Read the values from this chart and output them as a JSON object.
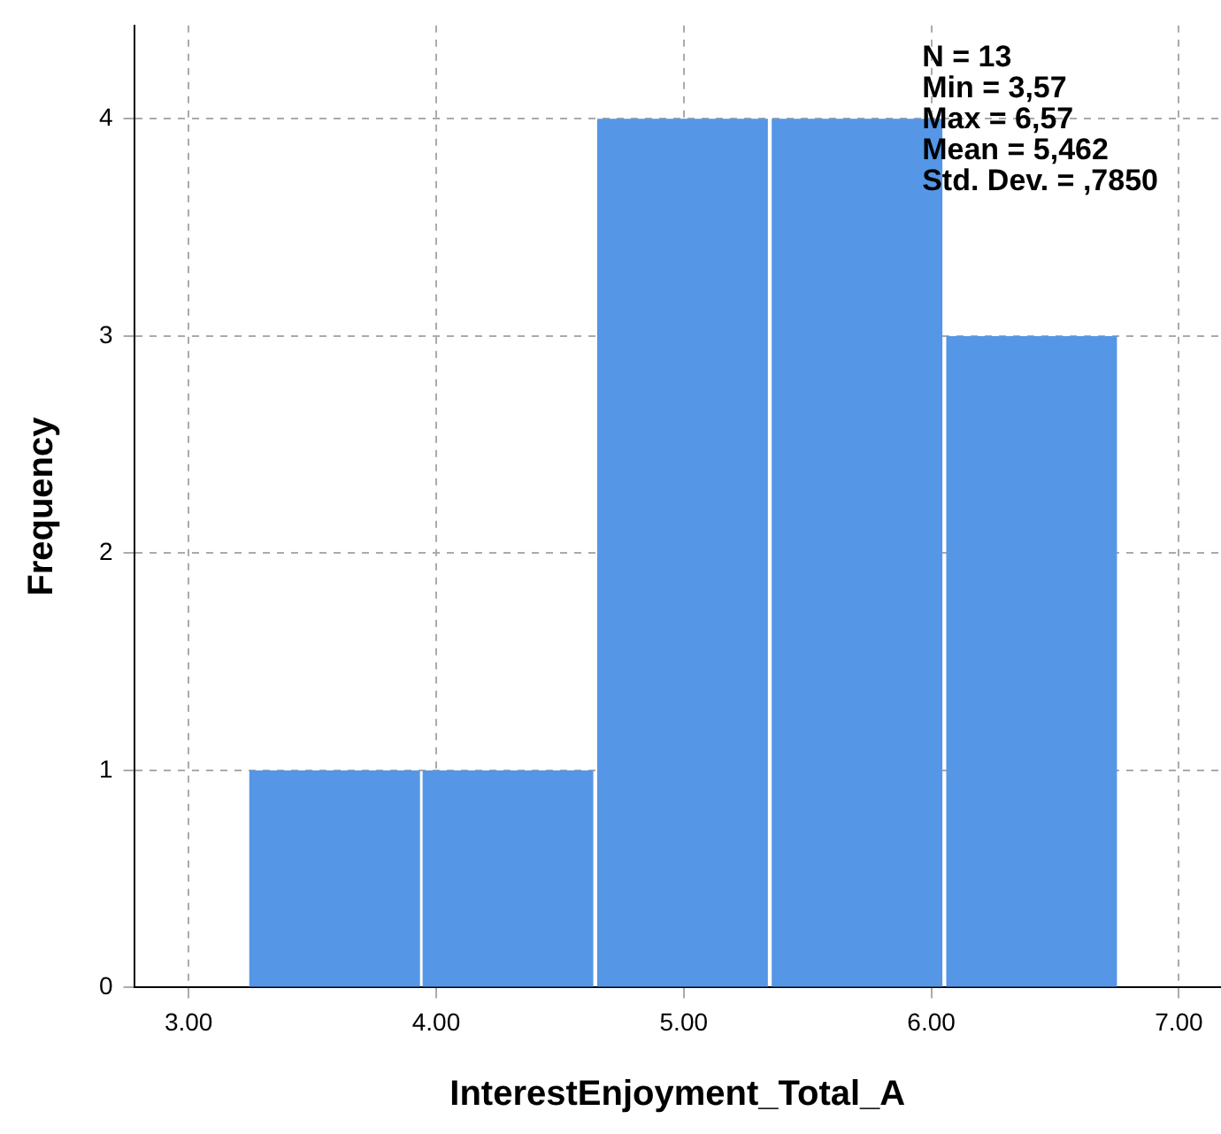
{
  "chart_data": {
    "type": "histogram",
    "xlabel": "InterestEnjoyment_Total_A",
    "ylabel": "Frequency",
    "bins": [
      3.24,
      3.94,
      4.64,
      5.35,
      6.05,
      6.76
    ],
    "values": [
      1,
      1,
      4,
      4,
      3
    ],
    "color": "#5596e6",
    "xlim": [
      2.78,
      7.17
    ],
    "xticks": [
      {
        "value": 3,
        "label": "3.00"
      },
      {
        "value": 4,
        "label": "4.00"
      },
      {
        "value": 5,
        "label": "5.00"
      },
      {
        "value": 6,
        "label": "6.00"
      },
      {
        "value": 7,
        "label": "7.00"
      }
    ],
    "ylim": [
      0,
      4.43
    ],
    "yticks": [
      0,
      1,
      2,
      3,
      4
    ],
    "grid": true,
    "legend": false,
    "annotations": [
      "N = 13",
      "Min = 3,57",
      "Max = 6,57",
      "Mean = 5,462",
      "Std. Dev. = ,7850"
    ]
  }
}
